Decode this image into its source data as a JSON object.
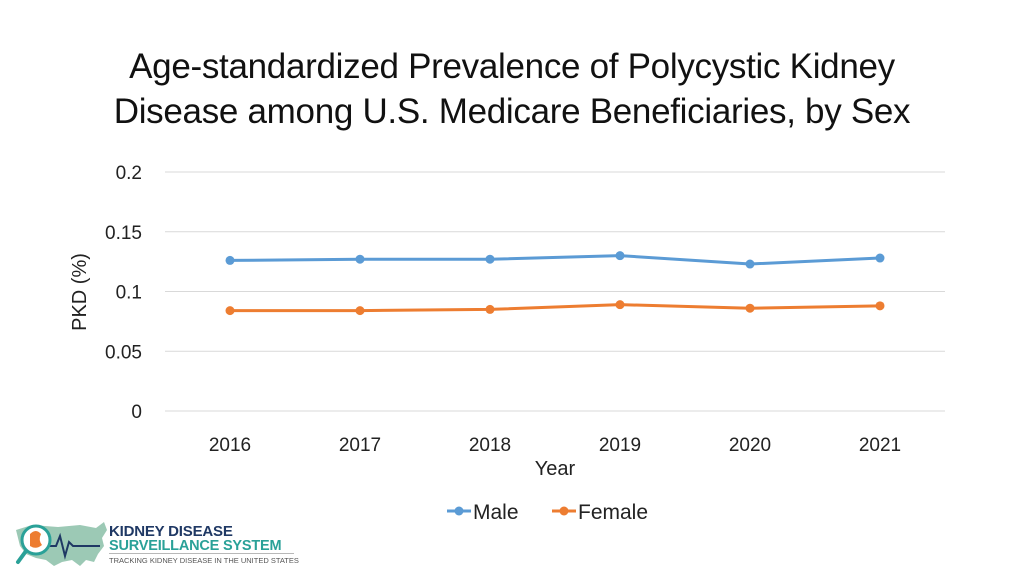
{
  "title_lines": [
    "Age-standardized Prevalence of Polycystic Kidney",
    "Disease among U.S. Medicare Beneficiaries, by Sex"
  ],
  "chart_data": {
    "type": "line",
    "title": "Age-standardized Prevalence of Polycystic Kidney Disease among U.S. Medicare Beneficiaries, by Sex",
    "xlabel": "Year",
    "ylabel": "PKD (%)",
    "categories": [
      "2016",
      "2017",
      "2018",
      "2019",
      "2020",
      "2021"
    ],
    "y_ticks": [
      "0",
      "0.05",
      "0.1",
      "0.15",
      "0.2"
    ],
    "ylim": [
      0,
      0.2
    ],
    "grid": true,
    "legend_position": "bottom",
    "series": [
      {
        "name": "Male",
        "color": "#5B9BD5",
        "values": [
          0.126,
          0.127,
          0.127,
          0.13,
          0.123,
          0.128
        ]
      },
      {
        "name": "Female",
        "color": "#ED7D31",
        "values": [
          0.084,
          0.084,
          0.085,
          0.089,
          0.086,
          0.088
        ]
      }
    ]
  },
  "logo": {
    "line1": "KIDNEY DISEASE",
    "line2": "SURVEILLANCE SYSTEM",
    "tagline": "TRACKING KIDNEY DISEASE IN THE UNITED STATES",
    "navy": "#1f3864",
    "teal": "#2aa198",
    "orange": "#ED7D31",
    "green": "#8bbfa8"
  }
}
